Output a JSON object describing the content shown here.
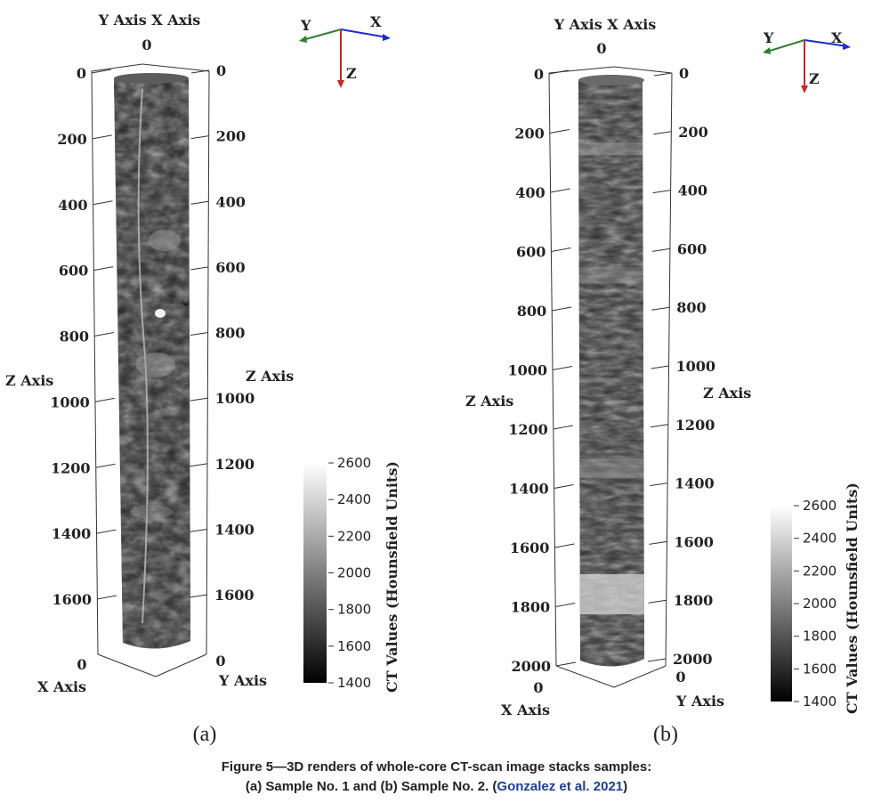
{
  "panels": [
    {
      "id": "a",
      "label": "(a)",
      "top_axes_label": "Y Axis X Axis",
      "top_zero": "0",
      "left_z_label": "Z Axis",
      "right_z_label": "Z Axis",
      "left_ticks": [
        "0",
        "200",
        "400",
        "600",
        "800",
        "1000",
        "1200",
        "1400",
        "1600"
      ],
      "right_ticks": [
        "0",
        "200",
        "400",
        "600",
        "800",
        "1000",
        "1200",
        "1400",
        "1600"
      ],
      "bottom_left_zero": "0",
      "bottom_right_zero": "0",
      "x_axis_label": "X Axis",
      "y_axis_label": "Y Axis",
      "triad": {
        "y": "Y",
        "x": "X",
        "z": "Z"
      },
      "colorbar": {
        "title": "CT Values (Hounsfield Units)",
        "ticks": [
          "2600",
          "2400",
          "2200",
          "2000",
          "1800",
          "1600",
          "1400"
        ]
      }
    },
    {
      "id": "b",
      "label": "(b)",
      "top_axes_label": "Y Axis X Axis",
      "top_zero": "0",
      "left_z_label": "Z Axis",
      "right_z_label": "Z Axis",
      "left_ticks": [
        "0",
        "200",
        "400",
        "600",
        "800",
        "1000",
        "1200",
        "1400",
        "1600",
        "1800",
        "2000"
      ],
      "right_ticks": [
        "0",
        "200",
        "400",
        "600",
        "800",
        "1000",
        "1200",
        "1400",
        "1600",
        "1800",
        "2000"
      ],
      "bottom_left_zero": "0",
      "bottom_right_zero": "0",
      "x_axis_label": "X Axis",
      "y_axis_label": "Y Axis",
      "triad": {
        "y": "Y",
        "x": "X",
        "z": "Z"
      },
      "colorbar": {
        "title": "CT Values (Hounsfield Units)",
        "ticks": [
          "2600",
          "2400",
          "2200",
          "2000",
          "1800",
          "1600",
          "1400"
        ]
      }
    }
  ],
  "caption": {
    "line1": "Figure 5—3D renders of whole-core CT-scan image stacks samples:",
    "line2_pre": "(a) Sample No. 1 and (b) Sample No. 2. (",
    "line2_link": "Gonzalez et al. 2021",
    "line2_post": ")"
  },
  "colors": {
    "triad_y": "#2e7d32",
    "triad_x": "#1a2fcc",
    "triad_z": "#c62828",
    "link": "#1f3d99"
  }
}
